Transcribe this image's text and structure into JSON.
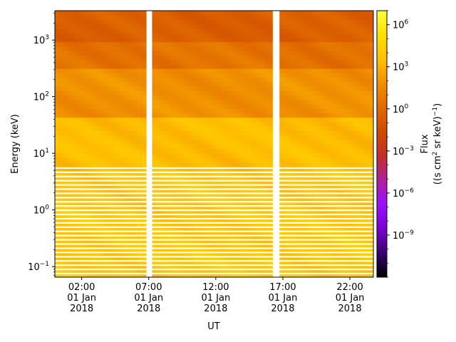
{
  "chart_data": {
    "type": "heatmap",
    "title": "",
    "xlabel": "UT",
    "ylabel": "Energy (keV)",
    "y_scale": "log",
    "ylim": [
      0.065,
      3300
    ],
    "xlim": [
      "2018-01-01 00:00",
      "2018-01-01 23:45"
    ],
    "x_ticks": [
      {
        "time": "2018-01-01 02:00",
        "lines": [
          "02:00",
          "01 Jan",
          "2018"
        ]
      },
      {
        "time": "2018-01-01 07:00",
        "lines": [
          "07:00",
          "01 Jan",
          "2018"
        ]
      },
      {
        "time": "2018-01-01 12:00",
        "lines": [
          "12:00",
          "01 Jan",
          "2018"
        ]
      },
      {
        "time": "2018-01-01 17:00",
        "lines": [
          "17:00",
          "01 Jan",
          "2018"
        ]
      },
      {
        "time": "2018-01-01 22:00",
        "lines": [
          "22:00",
          "01 Jan",
          "2018"
        ]
      }
    ],
    "y_ticks": [
      {
        "value": 0.1,
        "base": "10",
        "exp": "−1"
      },
      {
        "value": 1,
        "base": "10",
        "exp": "0"
      },
      {
        "value": 10,
        "base": "10",
        "exp": "1"
      },
      {
        "value": 100,
        "base": "10",
        "exp": "2"
      },
      {
        "value": 1000,
        "base": "10",
        "exp": "3"
      }
    ],
    "colorbar": {
      "label_line1": "Flux",
      "label_line2_pre": "((s cm",
      "label_line2_sup1": "2",
      "label_line2_mid": " sr keV)",
      "label_line2_sup2": "−1",
      "label_line2_post": ")",
      "scale": "log",
      "range": [
        1e-12,
        10000000.0
      ],
      "ticks": [
        {
          "value": 1e-09,
          "base": "10",
          "exp": "−9"
        },
        {
          "value": 1e-06,
          "base": "10",
          "exp": "−6"
        },
        {
          "value": 0.001,
          "base": "10",
          "exp": "−3"
        },
        {
          "value": 1,
          "base": "10",
          "exp": "0"
        },
        {
          "value": 1000.0,
          "base": "10",
          "exp": "3"
        },
        {
          "value": 1000000.0,
          "base": "10",
          "exp": "6"
        }
      ],
      "colormap": [
        "#000000",
        "#3a0070",
        "#7a00d0",
        "#9a10ff",
        "#b0209a",
        "#c0302a",
        "#d04a00",
        "#e06a00",
        "#f09000",
        "#ffc000",
        "#ffe000",
        "#ffff40"
      ]
    },
    "data_gaps": [
      {
        "start": "2018-01-01 06:50",
        "end": "2018-01-01 07:15",
        "energy_range": "all"
      },
      {
        "start": "2018-01-01 16:15",
        "end": "2018-01-01 16:45",
        "energy_range": "all"
      }
    ],
    "flux_summary": [
      {
        "energy_range": [
          1000,
          3300
        ],
        "typical_flux": 0.3,
        "appearance": "dark orange"
      },
      {
        "energy_range": [
          300,
          1000
        ],
        "typical_flux": 3,
        "appearance": "orange"
      },
      {
        "energy_range": [
          40,
          300
        ],
        "typical_flux": 60,
        "appearance": "orange"
      },
      {
        "energy_range": [
          5,
          40
        ],
        "typical_flux": 3000,
        "appearance": "yellow-orange"
      },
      {
        "energy_range": [
          0.065,
          5
        ],
        "typical_flux": 8000,
        "appearance": "yellow, banded"
      }
    ]
  }
}
